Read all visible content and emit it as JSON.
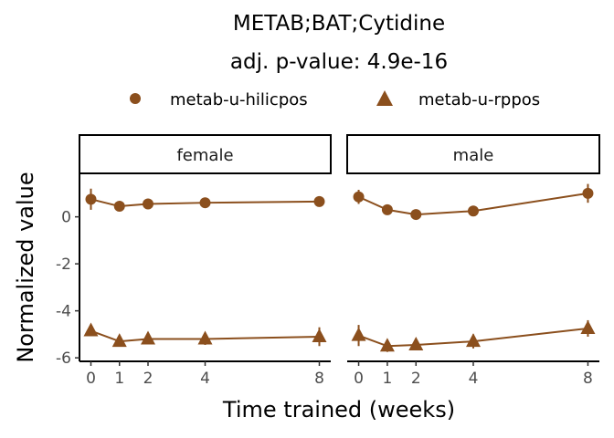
{
  "chart_data": {
    "type": "line",
    "title": "METAB;BAT;Cytidine",
    "subtitle": "adj. p-value: 4.9e-16",
    "xlabel": "Time trained (weeks)",
    "ylabel": "Normalized value",
    "x_ticks": [
      0,
      1,
      2,
      4,
      8
    ],
    "y_ticks": [
      0,
      -2,
      -4,
      -6
    ],
    "xlim": [
      -0.4,
      8.4
    ],
    "ylim": [
      -6.15,
      1.85
    ],
    "grid": false,
    "legend_position": "top",
    "color": "#8B4F1D",
    "legend": [
      {
        "name": "metab-u-hilicpos",
        "marker": "circle"
      },
      {
        "name": "metab-u-rppos",
        "marker": "triangle"
      }
    ],
    "panels": [
      {
        "label": "female",
        "series": [
          {
            "name": "metab-u-hilicpos",
            "marker": "circle",
            "x": [
              0,
              1,
              2,
              4,
              8
            ],
            "y": [
              0.75,
              0.45,
              0.55,
              0.6,
              0.65
            ],
            "err": [
              0.45,
              0.15,
              0.15,
              0.2,
              0.15
            ]
          },
          {
            "name": "metab-u-rppos",
            "marker": "triangle",
            "x": [
              0,
              1,
              2,
              4,
              8
            ],
            "y": [
              -4.85,
              -5.3,
              -5.2,
              -5.2,
              -5.1
            ],
            "err": [
              0.15,
              0.2,
              0.15,
              0.25,
              0.4
            ]
          }
        ]
      },
      {
        "label": "male",
        "series": [
          {
            "name": "metab-u-hilicpos",
            "marker": "circle",
            "x": [
              0,
              1,
              2,
              4,
              8
            ],
            "y": [
              0.85,
              0.3,
              0.1,
              0.25,
              1.0
            ],
            "err": [
              0.3,
              0.15,
              0.1,
              0.15,
              0.4
            ]
          },
          {
            "name": "metab-u-rppos",
            "marker": "triangle",
            "x": [
              0,
              1,
              2,
              4,
              8
            ],
            "y": [
              -5.05,
              -5.5,
              -5.45,
              -5.3,
              -4.75
            ],
            "err": [
              0.45,
              0.25,
              0.2,
              0.3,
              0.35
            ]
          }
        ]
      }
    ]
  }
}
